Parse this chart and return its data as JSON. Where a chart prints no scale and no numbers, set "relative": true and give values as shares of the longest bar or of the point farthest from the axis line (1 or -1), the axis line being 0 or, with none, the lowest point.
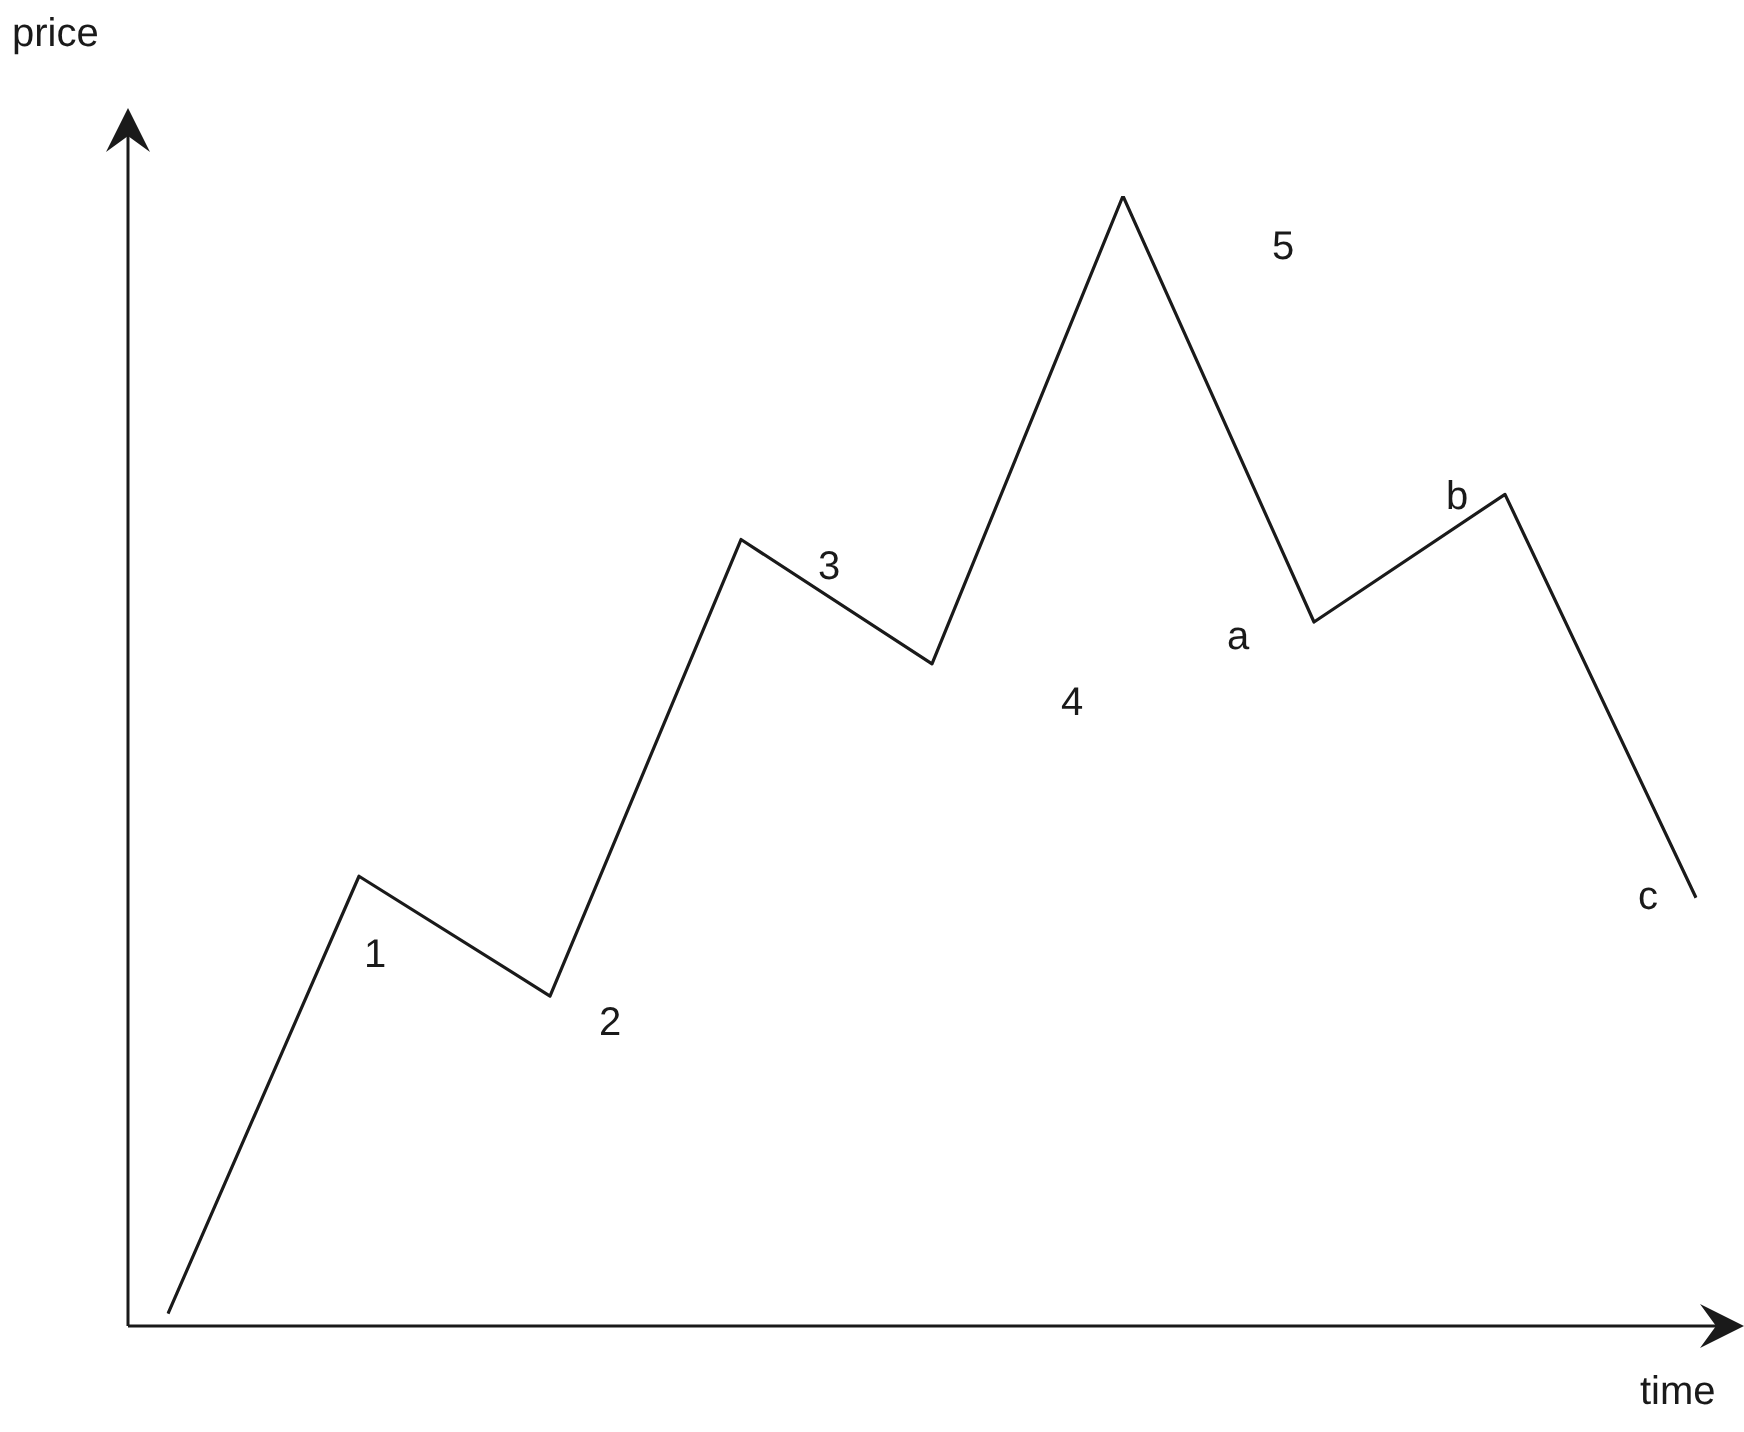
{
  "chart_data": {
    "type": "line",
    "relative": true,
    "xlabel": "time",
    "ylabel": "price",
    "categories": [
      null,
      null,
      null,
      null,
      null,
      null,
      null,
      null,
      null
    ],
    "series": [
      {
        "color": "#1a1a1a",
        "values": [
          0.011,
          0.398,
          0.292,
          0.696,
          0.586,
          1,
          0.623,
          0.736,
          0.379
        ]
      }
    ],
    "annotations": [
      "1",
      "2",
      "3",
      "4",
      "5",
      "a",
      "b",
      "c"
    ],
    "marker": "none",
    "line_style": "solid",
    "legend": false
  }
}
